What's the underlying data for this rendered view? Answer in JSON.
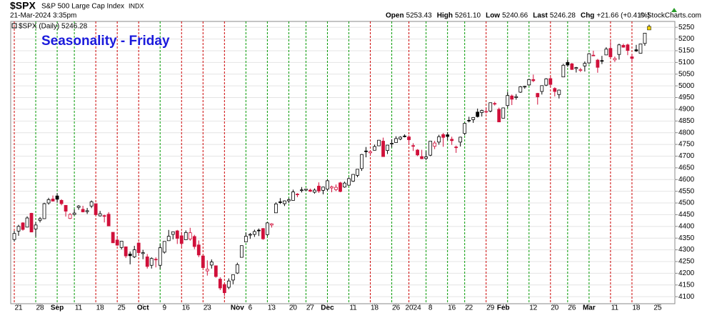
{
  "header": {
    "symbol": "$SPX",
    "name": "S&P 500 Large Cap Index",
    "exchange": "INDX",
    "datetime": "21-Mar-2024 3:35pm",
    "quote": [
      [
        "Open",
        "5253.43"
      ],
      [
        "High",
        "5261.10"
      ],
      [
        "Low",
        "5240.66"
      ],
      [
        "Last",
        "5246.28"
      ],
      [
        "Chg",
        "+21.66 (+0.41%)"
      ]
    ],
    "copyright": "© StockCharts.com"
  },
  "chart_data": {
    "type": "candlestick",
    "title": "Seasonality - Friday",
    "legend": "$SPX (Daily) 5246.28",
    "up_color": "#000000",
    "down_color": "#d0103a",
    "ylim": [
      4070,
      5275
    ],
    "yticks": [
      4100,
      4150,
      4200,
      4250,
      4300,
      4350,
      4400,
      4450,
      4500,
      4550,
      4600,
      4650,
      4700,
      4750,
      4800,
      4850,
      4900,
      4950,
      5000,
      5050,
      5100,
      5150,
      5200,
      5250
    ],
    "xlim": [
      -0.5,
      154
    ],
    "xticks": [
      {
        "value": 1,
        "label": "21"
      },
      {
        "value": 6,
        "label": "28"
      },
      {
        "value": 10,
        "label": "Sep"
      },
      {
        "value": 15,
        "label": "11"
      },
      {
        "value": 20,
        "label": "18"
      },
      {
        "value": 25,
        "label": "25"
      },
      {
        "value": 30,
        "label": "Oct"
      },
      {
        "value": 35,
        "label": "9"
      },
      {
        "value": 40,
        "label": "16"
      },
      {
        "value": 45,
        "label": "23"
      },
      {
        "value": 52,
        "label": "Nov"
      },
      {
        "value": 55,
        "label": "6"
      },
      {
        "value": 60,
        "label": "13"
      },
      {
        "value": 65,
        "label": "20"
      },
      {
        "value": 69,
        "label": "27"
      },
      {
        "value": 73,
        "label": "Dec"
      },
      {
        "value": 79,
        "label": "11"
      },
      {
        "value": 84,
        "label": "18"
      },
      {
        "value": 89,
        "label": "26"
      },
      {
        "value": 93,
        "label": "2024"
      },
      {
        "value": 97,
        "label": "8"
      },
      {
        "value": 102,
        "label": "16"
      },
      {
        "value": 106,
        "label": "22"
      },
      {
        "value": 111,
        "label": "29"
      },
      {
        "value": 114,
        "label": "Feb"
      },
      {
        "value": 121,
        "label": "12"
      },
      {
        "value": 126,
        "label": "20"
      },
      {
        "value": 130,
        "label": "26"
      },
      {
        "value": 134,
        "label": "Mar"
      },
      {
        "value": 140,
        "label": "11"
      },
      {
        "value": 145,
        "label": "18"
      },
      {
        "value": 150,
        "label": "25"
      }
    ],
    "friday_lines": {
      "x": [
        0,
        5,
        10,
        14,
        19,
        24,
        29,
        34,
        39,
        44,
        49,
        54,
        59,
        64,
        68,
        73,
        78,
        83,
        88,
        92,
        96,
        101,
        105,
        110,
        115,
        120,
        125,
        129,
        134,
        139,
        144
      ],
      "colors": [
        "#cc0000",
        "#009900",
        "#009900",
        "#009900",
        "#cc0000",
        "#cc0000",
        "#cc0000",
        "#009900",
        "#cc0000",
        "#cc0000",
        "#cc0000",
        "#009900",
        "#009900",
        "#009900",
        "#009900",
        "#009900",
        "#009900",
        "#cc0000",
        "#009900",
        "#cc0000",
        "#009900",
        "#009900",
        "#009900",
        "#cc0000",
        "#009900",
        "#009900",
        "#cc0000",
        "#009900",
        "#009900",
        "#cc0000",
        "#cc0000"
      ]
    },
    "ohlc": [
      [
        4344,
        4381,
        4335,
        4370
      ],
      [
        4380,
        4407,
        4360,
        4400
      ],
      [
        4415,
        4418,
        4382,
        4387
      ],
      [
        4397,
        4443,
        4396,
        4436
      ],
      [
        4456,
        4458,
        4375,
        4376
      ],
      [
        4389,
        4418,
        4356,
        4406
      ],
      [
        4426,
        4440,
        4417,
        4433
      ],
      [
        4433,
        4501,
        4432,
        4497
      ],
      [
        4500,
        4522,
        4493,
        4514
      ],
      [
        4517,
        4532,
        4507,
        4508
      ],
      [
        4530,
        4541,
        4501,
        4516
      ],
      [
        4511,
        4516,
        4490,
        4497
      ],
      [
        4490,
        4490,
        4442,
        4465
      ],
      [
        4434,
        4457,
        4431,
        4451
      ],
      [
        4451,
        4473,
        4448,
        4457
      ],
      [
        4481,
        4491,
        4471,
        4487
      ],
      [
        4473,
        4488,
        4460,
        4462
      ],
      [
        4463,
        4479,
        4453,
        4467
      ],
      [
        4487,
        4511,
        4478,
        4505
      ],
      [
        4497,
        4497,
        4447,
        4450
      ],
      [
        4445,
        4466,
        4442,
        4454
      ],
      [
        4446,
        4450,
        4417,
        4444
      ],
      [
        4452,
        4461,
        4402,
        4402
      ],
      [
        4375,
        4375,
        4329,
        4330
      ],
      [
        4342,
        4357,
        4317,
        4320
      ],
      [
        4310,
        4338,
        4302,
        4337
      ],
      [
        4313,
        4314,
        4265,
        4274
      ],
      [
        4282,
        4293,
        4238,
        4275
      ],
      [
        4270,
        4317,
        4265,
        4300
      ],
      [
        4329,
        4333,
        4275,
        4288
      ],
      [
        4284,
        4300,
        4260,
        4288
      ],
      [
        4270,
        4282,
        4220,
        4229
      ],
      [
        4234,
        4268,
        4220,
        4263
      ],
      [
        4260,
        4268,
        4225,
        4258
      ],
      [
        4234,
        4324,
        4219,
        4309
      ],
      [
        4290,
        4336,
        4284,
        4336
      ],
      [
        4339,
        4385,
        4339,
        4358
      ],
      [
        4366,
        4378,
        4345,
        4377
      ],
      [
        4381,
        4385,
        4325,
        4349
      ],
      [
        4360,
        4377,
        4311,
        4327
      ],
      [
        4343,
        4383,
        4343,
        4374
      ],
      [
        4346,
        4394,
        4339,
        4373
      ],
      [
        4357,
        4364,
        4303,
        4314
      ],
      [
        4321,
        4340,
        4269,
        4278
      ],
      [
        4274,
        4276,
        4223,
        4224
      ],
      [
        4210,
        4255,
        4190,
        4217
      ],
      [
        4235,
        4259,
        4220,
        4248
      ],
      [
        4232,
        4232,
        4181,
        4186
      ],
      [
        4175,
        4183,
        4128,
        4137
      ],
      [
        4152,
        4156,
        4103,
        4117
      ],
      [
        4140,
        4178,
        4132,
        4167
      ],
      [
        4171,
        4194,
        4153,
        4194
      ],
      [
        4201,
        4245,
        4197,
        4237
      ],
      [
        4268,
        4319,
        4268,
        4318
      ],
      [
        4334,
        4374,
        4334,
        4358
      ],
      [
        4364,
        4372,
        4347,
        4366
      ],
      [
        4366,
        4386,
        4355,
        4378
      ],
      [
        4384,
        4391,
        4359,
        4383
      ],
      [
        4391,
        4393,
        4343,
        4347
      ],
      [
        4365,
        4418,
        4359,
        4415
      ],
      [
        4406,
        4414,
        4395,
        4411
      ],
      [
        4458,
        4503,
        4458,
        4496
      ],
      [
        4505,
        4521,
        4496,
        4503
      ],
      [
        4497,
        4511,
        4487,
        4509
      ],
      [
        4509,
        4521,
        4500,
        4514
      ],
      [
        4511,
        4557,
        4511,
        4547
      ],
      [
        4538,
        4542,
        4525,
        4538
      ],
      [
        4553,
        4568,
        4545,
        4556
      ],
      [
        4555,
        4560,
        4552,
        4559
      ],
      [
        4555,
        4561,
        4547,
        4550
      ],
      [
        4546,
        4562,
        4540,
        4555
      ],
      [
        4572,
        4588,
        4543,
        4551
      ],
      [
        4554,
        4570,
        4537,
        4568
      ],
      [
        4559,
        4600,
        4551,
        4595
      ],
      [
        4564,
        4574,
        4546,
        4569
      ],
      [
        4557,
        4579,
        4551,
        4567
      ],
      [
        4586,
        4590,
        4546,
        4549
      ],
      [
        4568,
        4591,
        4565,
        4585
      ],
      [
        4576,
        4609,
        4574,
        4604
      ],
      [
        4593,
        4623,
        4590,
        4622
      ],
      [
        4618,
        4644,
        4610,
        4644
      ],
      [
        4647,
        4709,
        4637,
        4707
      ],
      [
        4722,
        4739,
        4695,
        4720
      ],
      [
        4714,
        4725,
        4704,
        4719
      ],
      [
        4725,
        4749,
        4724,
        4741
      ],
      [
        4744,
        4769,
        4743,
        4768
      ],
      [
        4764,
        4779,
        4698,
        4698
      ],
      [
        4724,
        4748,
        4709,
        4747
      ],
      [
        4754,
        4772,
        4737,
        4755
      ],
      [
        4758,
        4785,
        4758,
        4775
      ],
      [
        4773,
        4785,
        4768,
        4781
      ],
      [
        4786,
        4793,
        4780,
        4783
      ],
      [
        4782,
        4789,
        4751,
        4770
      ],
      [
        4745,
        4755,
        4722,
        4743
      ],
      [
        4726,
        4730,
        4700,
        4705
      ],
      [
        4698,
        4727,
        4687,
        4689
      ],
      [
        4690,
        4721,
        4683,
        4697
      ],
      [
        4704,
        4764,
        4700,
        4764
      ],
      [
        4742,
        4765,
        4730,
        4756
      ],
      [
        4760,
        4791,
        4749,
        4783
      ],
      [
        4792,
        4799,
        4740,
        4780
      ],
      [
        4791,
        4802,
        4768,
        4784
      ],
      [
        4772,
        4783,
        4748,
        4766
      ],
      [
        4739,
        4745,
        4714,
        4739
      ],
      [
        4760,
        4783,
        4741,
        4781
      ],
      [
        4797,
        4843,
        4789,
        4840
      ],
      [
        4853,
        4868,
        4844,
        4850
      ],
      [
        4856,
        4867,
        4842,
        4865
      ],
      [
        4888,
        4903,
        4865,
        4869
      ],
      [
        4886,
        4898,
        4869,
        4895
      ],
      [
        4888,
        4906,
        4882,
        4891
      ],
      [
        4892,
        4929,
        4887,
        4928
      ],
      [
        4925,
        4932,
        4916,
        4925
      ],
      [
        4900,
        4907,
        4845,
        4846
      ],
      [
        4862,
        4907,
        4862,
        4906
      ],
      [
        4916,
        4975,
        4907,
        4959
      ],
      [
        4957,
        4963,
        4918,
        4943
      ],
      [
        4950,
        4965,
        4941,
        4954
      ],
      [
        4973,
        4999,
        4970,
        4996
      ],
      [
        4996,
        5000,
        4988,
        4998
      ],
      [
        5004,
        5030,
        5001,
        5027
      ],
      [
        5027,
        5048,
        5016,
        5022
      ],
      [
        4968,
        4970,
        4920,
        4953
      ],
      [
        4976,
        5002,
        4963,
        5001
      ],
      [
        5003,
        5033,
        4999,
        5030
      ],
      [
        5031,
        5039,
        4996,
        5006
      ],
      [
        4989,
        4994,
        4955,
        4976
      ],
      [
        4963,
        4984,
        4946,
        4982
      ],
      [
        5038,
        5094,
        5038,
        5088
      ],
      [
        5100,
        5112,
        5081,
        5089
      ],
      [
        5094,
        5098,
        5068,
        5070
      ],
      [
        5074,
        5081,
        5057,
        5078
      ],
      [
        5068,
        5077,
        5059,
        5069
      ],
      [
        5085,
        5104,
        5061,
        5096
      ],
      [
        5098,
        5140,
        5094,
        5137
      ],
      [
        5131,
        5150,
        5128,
        5131
      ],
      [
        5110,
        5115,
        5056,
        5079
      ],
      [
        5108,
        5128,
        5093,
        5105
      ],
      [
        5132,
        5165,
        5132,
        5157
      ],
      [
        5160,
        5189,
        5118,
        5124
      ],
      [
        5111,
        5125,
        5102,
        5117
      ],
      [
        5134,
        5180,
        5112,
        5175
      ],
      [
        5173,
        5180,
        5163,
        5165
      ],
      [
        5175,
        5180,
        5131,
        5151
      ],
      [
        5124,
        5136,
        5105,
        5117
      ],
      [
        5154,
        5175,
        5145,
        5149
      ],
      [
        5139,
        5180,
        5138,
        5179
      ],
      [
        5181,
        5226,
        5171,
        5225
      ],
      [
        5253.43,
        5261.1,
        5240.66,
        5246.28
      ]
    ]
  }
}
